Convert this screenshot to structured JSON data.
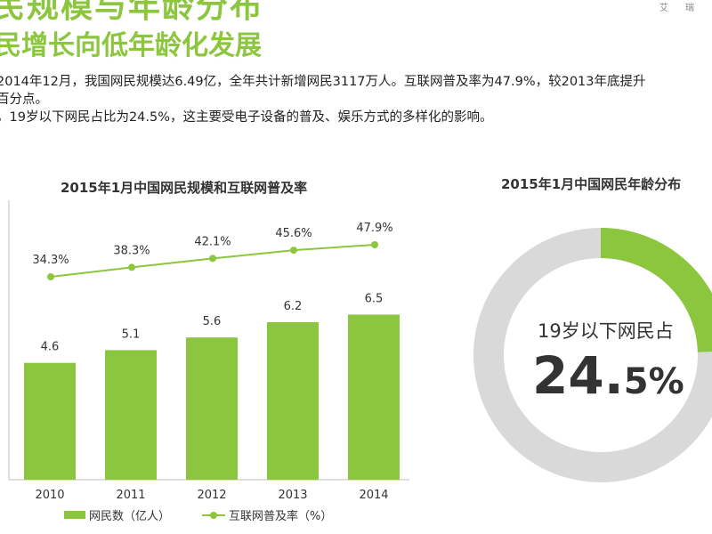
{
  "header": {
    "title": "民规模与年龄分布",
    "subtitle": "民增长向低年龄化发展",
    "brand": "艾 瑞"
  },
  "text": {
    "line1": "2014年12月，我国网民规模达6.49亿，全年共计新增网民3117万人。互联网普及率为47.9%，较2013年底提升",
    "line2": "百分点。",
    "line3": "，19岁以下网民占比为24.5%，这主要受电子设备的普及、娱乐方式的多样化的影响。"
  },
  "colors": {
    "accent": "#8cc63f",
    "donut_rest": "#d9d9d9"
  },
  "chart_data": [
    {
      "type": "bar",
      "title": "2015年1月中国网民规模和互联网普及率",
      "categories": [
        "2010",
        "2011",
        "2012",
        "2013",
        "2014"
      ],
      "series": [
        {
          "name": "网民数（亿人）",
          "type": "bar",
          "values": [
            4.6,
            5.1,
            5.6,
            6.2,
            6.5
          ],
          "labels": [
            "4.6",
            "5.1",
            "5.6",
            "6.2",
            "6.5"
          ]
        },
        {
          "name": "互联网普及率（%）",
          "type": "line",
          "values": [
            34.3,
            38.3,
            42.1,
            45.6,
            47.9
          ],
          "labels": [
            "34.3%",
            "38.3%",
            "42.1%",
            "45.6%",
            "47.9%"
          ]
        }
      ],
      "ylim": [
        0,
        11
      ]
    },
    {
      "type": "pie",
      "title": "2015年1月中国网民年龄分布",
      "slices": [
        {
          "label": "19岁以下网民占",
          "value": 24.5
        },
        {
          "label": "",
          "value": 75.5
        }
      ],
      "center_label": "19岁以下网民占",
      "center_value": "24.",
      "center_value_small": "5%"
    }
  ]
}
